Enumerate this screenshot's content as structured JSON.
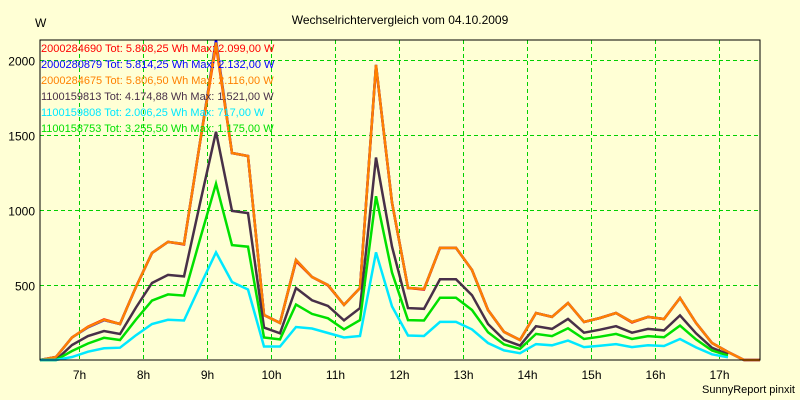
{
  "chart_data": {
    "type": "line",
    "title": "Wechselrichtervergleich vom 04.10.2009",
    "ylabel": "W",
    "xlabel": "",
    "footer": "SunnyReport pinxit",
    "ylim": [
      0,
      2133
    ],
    "yticks": [
      500,
      1000,
      1500,
      2000
    ],
    "xlim_hours": [
      6.383,
      17.633
    ],
    "xticks": [
      {
        "hour": 7,
        "label": "7h"
      },
      {
        "hour": 8,
        "label": "8h"
      },
      {
        "hour": 9,
        "label": "9h"
      },
      {
        "hour": 10,
        "label": "10h"
      },
      {
        "hour": 11,
        "label": "11h"
      },
      {
        "hour": 12,
        "label": "12h"
      },
      {
        "hour": 13,
        "label": "13h"
      },
      {
        "hour": 14,
        "label": "14h"
      },
      {
        "hour": 15,
        "label": "15h"
      },
      {
        "hour": 16,
        "label": "16h"
      },
      {
        "hour": 17,
        "label": "17h"
      }
    ],
    "grid": true,
    "legend_position": "top-left",
    "x_start_hour": 6.383,
    "x_step_minutes": 15,
    "series": [
      {
        "name": "2000284690",
        "legend": "2000284690 Tot: 5.808,25 Wh Max: 2.099,00 W",
        "color": "#ff0000",
        "values": [
          0,
          20,
          150,
          222,
          270,
          240,
          487,
          713,
          787,
          770,
          1450,
          2099,
          1380,
          1360,
          300,
          247,
          660,
          553,
          497,
          367,
          480,
          1960,
          1050,
          480,
          470,
          747,
          747,
          600,
          333,
          187,
          133,
          313,
          287,
          380,
          253,
          280,
          313,
          250,
          287,
          273,
          413,
          247,
          113,
          53,
          0,
          0
        ]
      },
      {
        "name": "2000280879",
        "legend": "2000280879 Tot: 5.814,25 Wh Max: 2.132,00 W",
        "color": "#0000ff",
        "values": [
          0,
          20,
          150,
          218,
          265,
          240,
          487,
          713,
          787,
          773,
          1450,
          2132,
          1380,
          1360,
          300,
          247,
          667,
          553,
          500,
          367,
          480,
          1967,
          1050,
          480,
          473,
          747,
          747,
          600,
          333,
          187,
          133,
          313,
          287,
          380,
          253,
          280,
          313,
          253,
          287,
          273,
          413,
          247,
          113,
          53,
          0,
          0
        ]
      },
      {
        "name": "2000284675",
        "legend": "2000284675 Tot: 5.806,50 Wh Max: 2.116,00 W",
        "color": "#ff8000",
        "values": [
          0,
          20,
          150,
          220,
          267,
          240,
          487,
          713,
          787,
          773,
          1450,
          2116,
          1380,
          1360,
          300,
          247,
          667,
          553,
          500,
          367,
          480,
          1967,
          1050,
          480,
          473,
          747,
          747,
          600,
          333,
          187,
          133,
          313,
          287,
          380,
          253,
          280,
          313,
          253,
          287,
          273,
          413,
          247,
          113,
          53,
          0,
          0
        ]
      },
      {
        "name": "1100159813",
        "legend": "1100159813 Tot: 4.174,88 Wh Max: 1.521,00 W",
        "color": "#483048",
        "values": [
          0,
          0,
          100,
          160,
          193,
          173,
          350,
          513,
          567,
          557,
          1044,
          1521,
          994,
          979,
          216,
          178,
          480,
          398,
          360,
          264,
          346,
          1350,
          756,
          346,
          341,
          538,
          538,
          432,
          240,
          135,
          96,
          225,
          207,
          274,
          182,
          202,
          225,
          182,
          207,
          197,
          297,
          178,
          81,
          38
        ]
      },
      {
        "name": "1100159808",
        "legend": "1100159808 Tot: 2.006,25 Wh Max: 717,00 W",
        "color": "#00e8ff",
        "values": [
          0,
          0,
          20,
          55,
          78,
          82,
          165,
          240,
          268,
          263,
          493,
          717,
          520,
          470,
          90,
          90,
          220,
          210,
          180,
          150,
          160,
          717,
          357,
          163,
          160,
          254,
          254,
          204,
          113,
          64,
          45,
          106,
          98,
          129,
          86,
          95,
          106,
          86,
          98,
          93,
          140,
          84,
          38,
          18
        ]
      },
      {
        "name": "1100158753",
        "legend": "1100158753 Tot: 3.255,50 Wh Max: 1.175,00 W",
        "color": "#00e000",
        "values": [
          0,
          0,
          60,
          110,
          148,
          133,
          270,
          396,
          437,
          429,
          805,
          1175,
          766,
          755,
          150,
          137,
          370,
          307,
          278,
          204,
          266,
          1092,
          583,
          266,
          263,
          415,
          415,
          333,
          185,
          104,
          74,
          174,
          159,
          211,
          140,
          155,
          174,
          140,
          159,
          152,
          229,
          137,
          63,
          29
        ]
      }
    ],
    "draw_order": [
      0,
      1,
      2,
      3,
      5,
      4
    ],
    "colors": {
      "background": "#ffffd5",
      "grid": "#00d000",
      "axis": "#000000"
    }
  }
}
